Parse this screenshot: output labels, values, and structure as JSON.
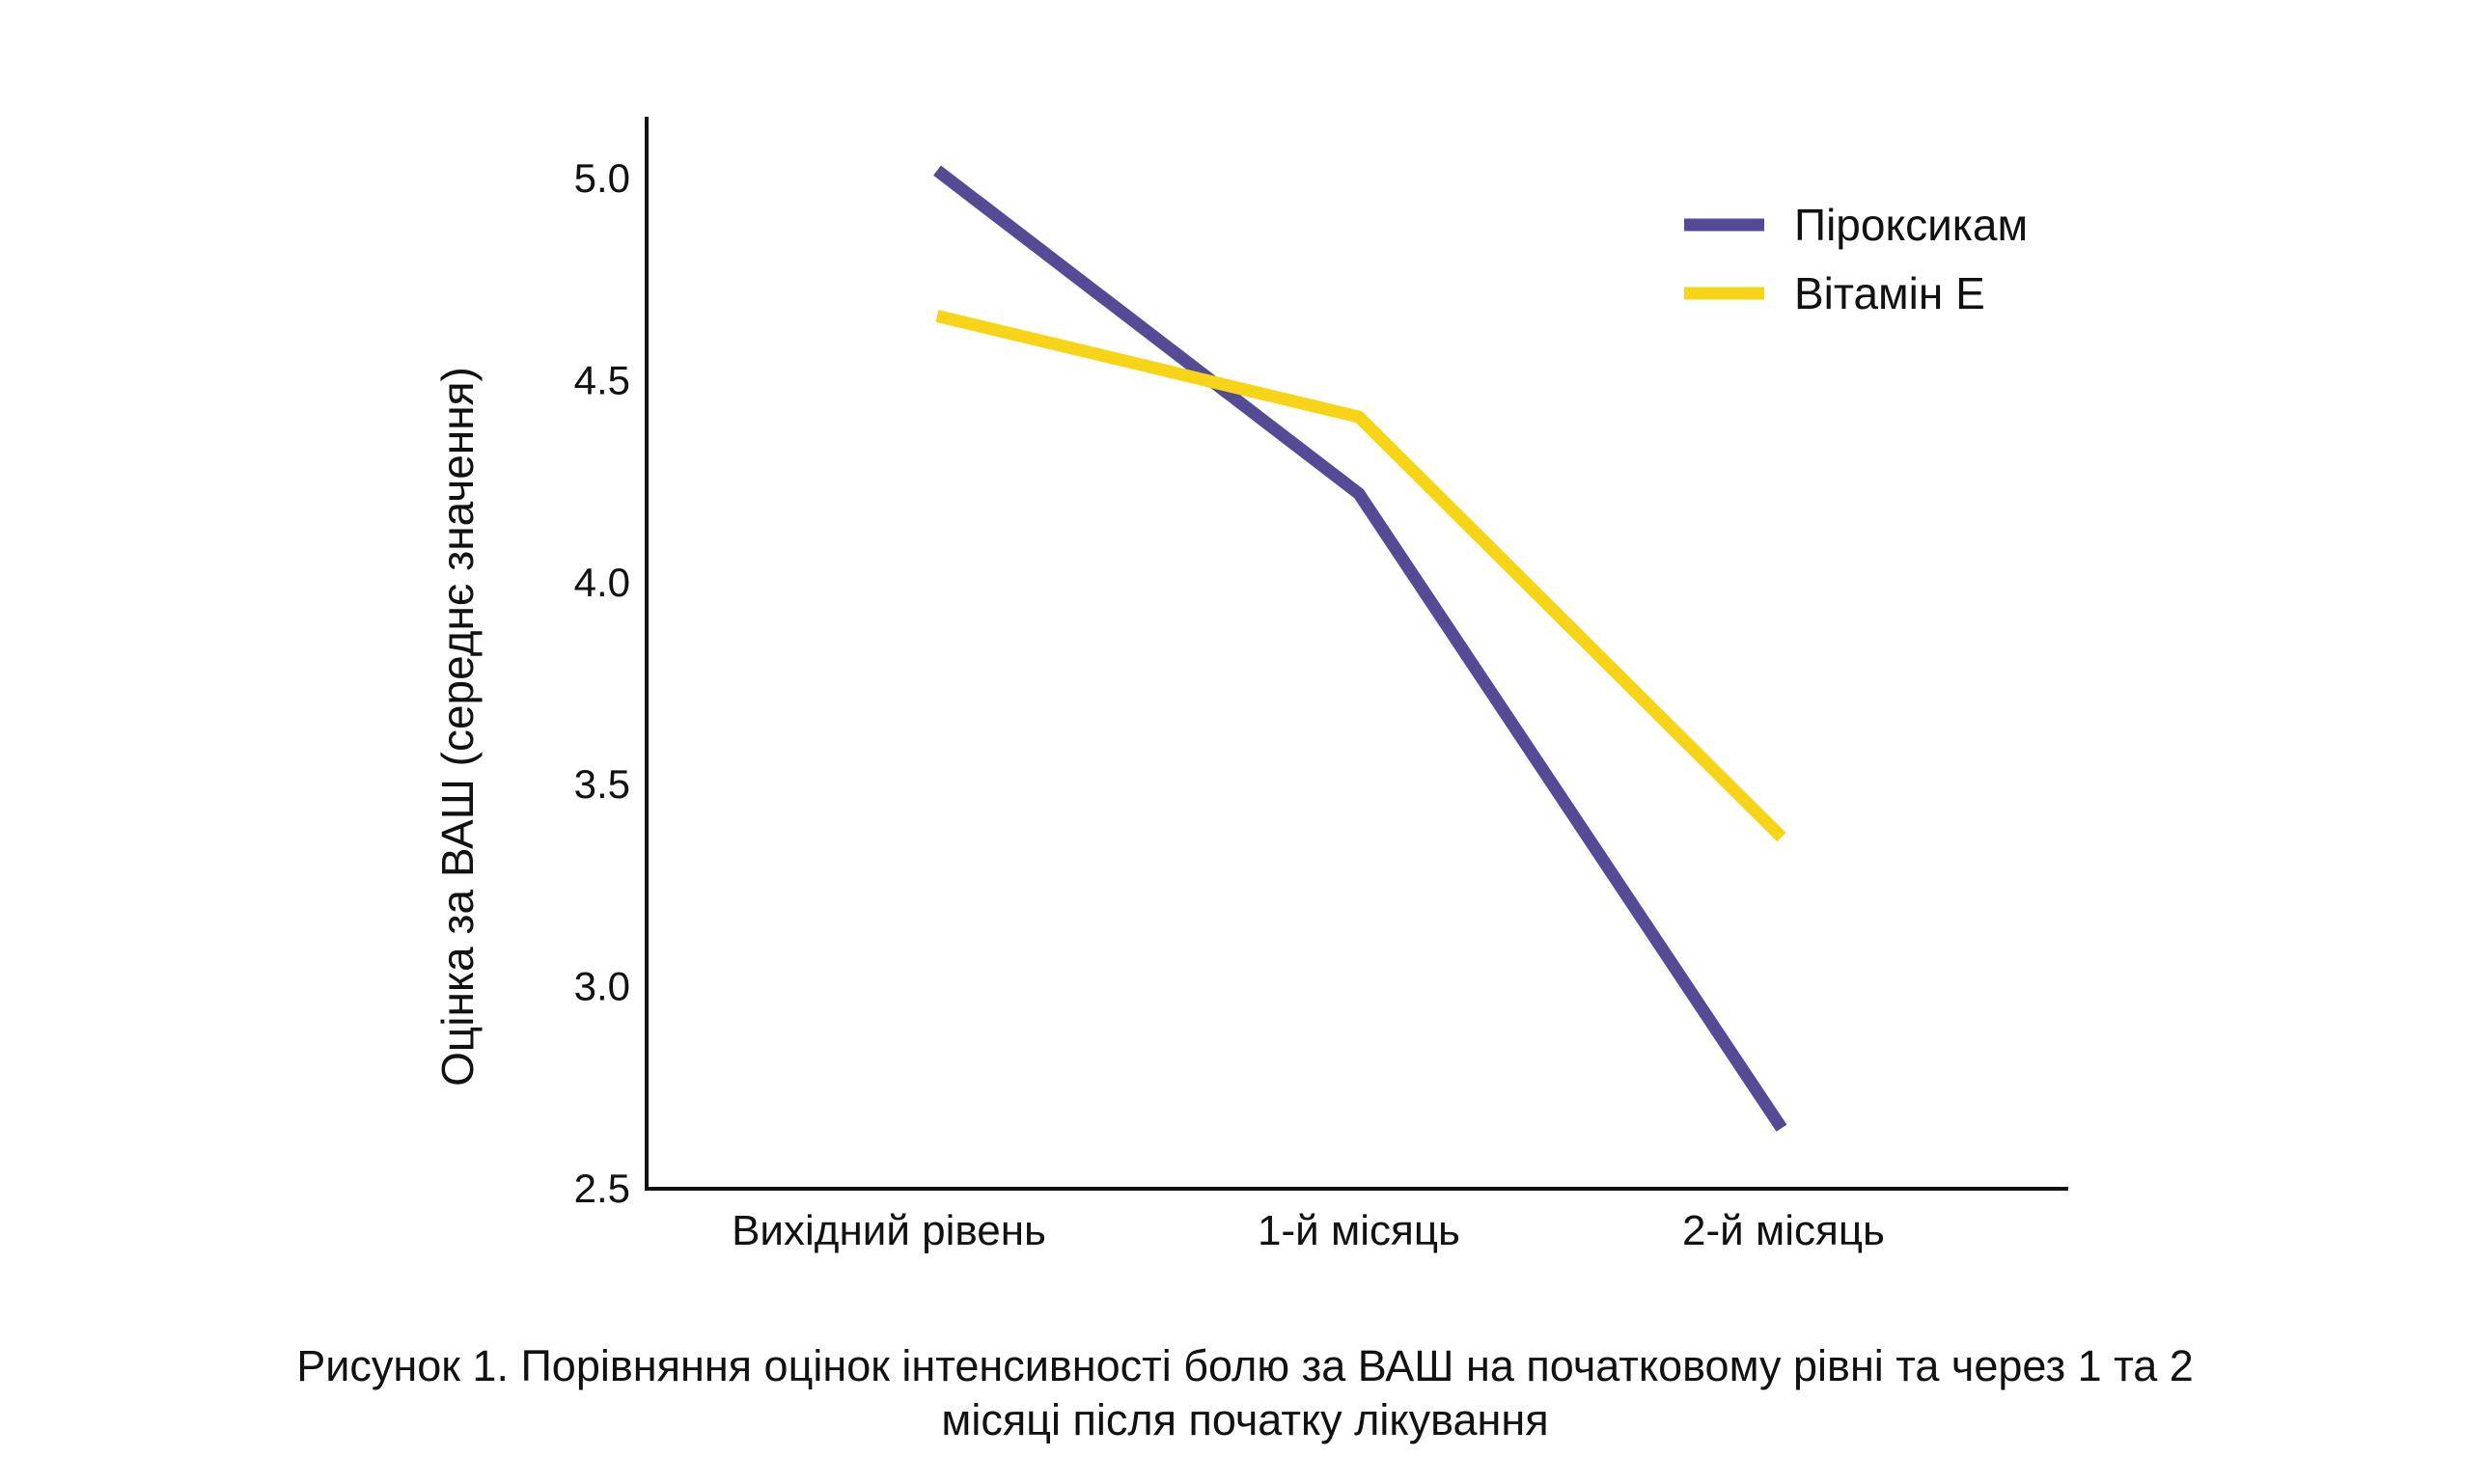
{
  "chart_data": {
    "type": "line",
    "title": "",
    "xlabel": "",
    "ylabel": "Оцінка за ВАШ (середнє значення)",
    "categories": [
      "Вихідний рівень",
      "1-й місяць",
      "2-й місяць"
    ],
    "ylim": [
      2.5,
      5.0
    ],
    "yticks": [
      "2.5",
      "3.0",
      "3.5",
      "4.0",
      "4.5",
      "5.0"
    ],
    "grid": false,
    "legend_position": "top-right",
    "series": [
      {
        "name": "Піроксикам",
        "color": "#544a96",
        "values": [
          5.02,
          4.22,
          2.65
        ]
      },
      {
        "name": "Вітамін Е",
        "color": "#f7d417",
        "values": [
          4.66,
          4.41,
          3.37
        ]
      }
    ]
  },
  "caption": {
    "line1": "Рисунок 1. Порівняння оцінок інтенсивності болю за ВАШ на початковому рівні та через 1 та 2",
    "line2": "місяці після початку лікування"
  }
}
